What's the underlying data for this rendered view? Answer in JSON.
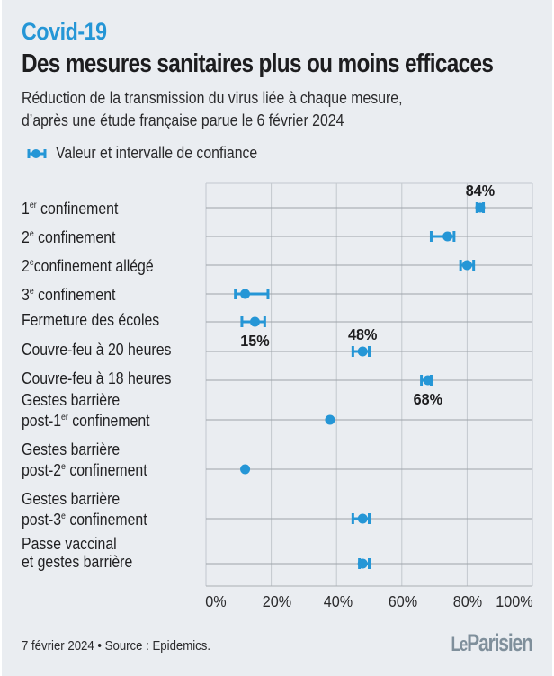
{
  "header": {
    "kicker": "Covid-19",
    "title": "Des mesures sanitaires plus ou moins efficaces",
    "subtitle_line1": "Réduction de la transmission du virus liée à chaque mesure,",
    "subtitle_line2": "d’après une étude française parue le 6 février 2024"
  },
  "legend": {
    "icon": "dot-with-error-bar-icon",
    "label": "Valeur et intervalle de confiance"
  },
  "colors": {
    "accent": "#2596d6",
    "background": "#eaedf1",
    "text": "#1d1d1f",
    "grid": "#c3c8ce",
    "logo": "#7f8f9b"
  },
  "footer": {
    "source": "7 février 2024 • Source : Epidemics.",
    "logo_le": "Le",
    "logo_parisien": "Parisien"
  },
  "chart_data": {
    "type": "scatter",
    "subtype": "dot-with-confidence-interval",
    "title": "Des mesures sanitaires plus ou moins efficaces",
    "subtitle": "Réduction de la transmission du virus liée à chaque mesure, d’après une étude française parue le 6 février 2024",
    "xlabel": "",
    "ylabel": "",
    "xlim": [
      0,
      100
    ],
    "x_unit": "%",
    "x_ticks": [
      0,
      20,
      40,
      60,
      80,
      100
    ],
    "x_tick_labels": [
      "0%",
      "20%",
      "40%",
      "60%",
      "80%",
      "100%"
    ],
    "grid": true,
    "legend_position": "top-left",
    "legend": [
      "Valeur et intervalle de confiance"
    ],
    "categories": [
      {
        "line1": "1",
        "sup": "er",
        "rest": " confinement",
        "line2": ""
      },
      {
        "line1": "2",
        "sup": "e",
        "rest": " confinement",
        "line2": ""
      },
      {
        "line1": "2",
        "sup": "e",
        "rest": "confinement allégé",
        "line2": ""
      },
      {
        "line1": "3",
        "sup": "e",
        "rest": " confinement",
        "line2": ""
      },
      {
        "line1": "Fermeture des écoles",
        "sup": "",
        "rest": "",
        "line2": ""
      },
      {
        "line1": "Couvre-feu à 20 heures",
        "sup": "",
        "rest": "",
        "line2": ""
      },
      {
        "line1": "Couvre-feu à 18 heures",
        "sup": "",
        "rest": "",
        "line2": ""
      },
      {
        "line1": "Gestes barrière",
        "sup": "",
        "rest": "",
        "line2": "post-1",
        "line2_sup": "er",
        "line2_rest": " confinement"
      },
      {
        "line1": "Gestes barrière",
        "sup": "",
        "rest": "",
        "line2": "post-2",
        "line2_sup": "e",
        "line2_rest": " confinement"
      },
      {
        "line1": "Gestes barrière",
        "sup": "",
        "rest": "",
        "line2": "post-3",
        "line2_sup": "e",
        "line2_rest": " confinement"
      },
      {
        "line1": "Passe vaccinal",
        "sup": "",
        "rest": "",
        "line2": "et gestes barrière"
      }
    ],
    "category_names": [
      "1er confinement",
      "2e confinement",
      "2e confinement allégé",
      "3e confinement",
      "Fermeture des écoles",
      "Couvre-feu à 20 heures",
      "Couvre-feu à 18 heures",
      "Gestes barrière post-1er confinement",
      "Gestes barrière post-2e confinement",
      "Gestes barrière post-3e confinement",
      "Passe vaccinal et gestes barrière"
    ],
    "series": [
      {
        "name": "Valeur et intervalle de confiance",
        "values": [
          84,
          74,
          80,
          12,
          15,
          48,
          68,
          38,
          12,
          48,
          48
        ],
        "ci_low": [
          83,
          69,
          78,
          9,
          11,
          45,
          66,
          null,
          null,
          45,
          47
        ],
        "ci_high": [
          85,
          76,
          82,
          19,
          18,
          50,
          69,
          null,
          null,
          50,
          50
        ]
      }
    ],
    "annotations": [
      {
        "category_index": 0,
        "text": "84%",
        "position": "above"
      },
      {
        "category_index": 4,
        "text": "15%",
        "position": "below"
      },
      {
        "category_index": 5,
        "text": "48%",
        "position": "above"
      },
      {
        "category_index": 6,
        "text": "68%",
        "position": "below"
      }
    ]
  }
}
